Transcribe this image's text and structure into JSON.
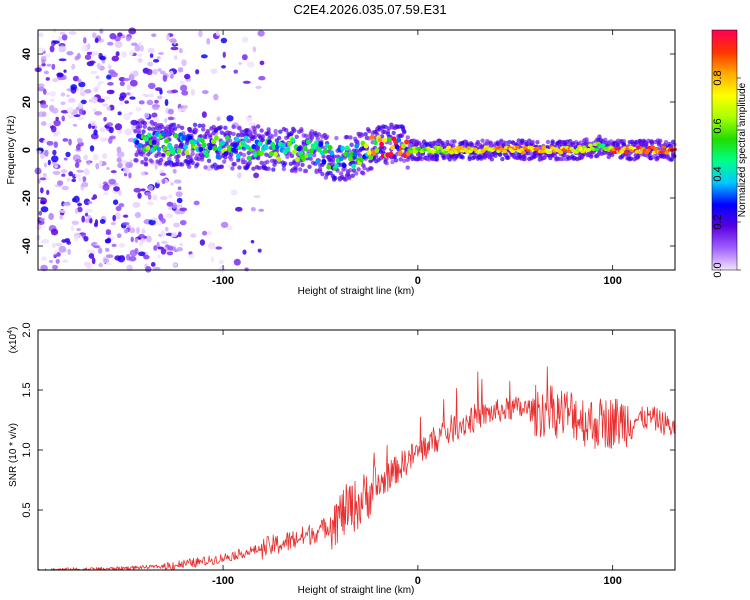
{
  "title": "C2E4.2026.035.07.59.E31",
  "chart_data": [
    {
      "type": "heatmap",
      "name": "spectrogram",
      "xlabel": "Height of straight line (km)",
      "ylabel": "Frequency (Hz)",
      "xlim": [
        -195,
        132
      ],
      "ylim": [
        -50,
        50
      ],
      "x_ticks": [
        -100,
        0,
        100
      ],
      "y_ticks": [
        -40,
        -20,
        0,
        20,
        40
      ],
      "colorbar": {
        "label": "Normalized spectral amplitude",
        "range": [
          0,
          1
        ],
        "ticks": [
          "0.0",
          "0.2",
          "0.4",
          "0.6",
          "0.8"
        ],
        "stops": [
          "#f2e4ff",
          "#a060ff",
          "#5a00e0",
          "#0000ff",
          "#00c8ff",
          "#00ff88",
          "#22dd00",
          "#aaff00",
          "#ffff00",
          "#ffaa00",
          "#ff3300",
          "#ff0055"
        ]
      },
      "signal_track": {
        "x": [
          -145,
          -120,
          -100,
          -80,
          -60,
          -50,
          -40,
          -30,
          -25,
          -20,
          -15,
          -10,
          -5,
          0,
          20,
          40,
          60,
          80,
          90,
          95,
          100,
          132
        ],
        "freq": [
          3,
          2,
          1,
          1,
          0,
          -2,
          -4,
          -2,
          1,
          2,
          2,
          2,
          0,
          0,
          0,
          0,
          0,
          0,
          1,
          2,
          0,
          0
        ],
        "peak_amplitude": [
          0.35,
          0.4,
          0.4,
          0.4,
          0.38,
          0.35,
          0.3,
          0.5,
          0.7,
          0.9,
          0.95,
          0.95,
          0.6,
          0.6,
          0.75,
          0.8,
          0.85,
          0.8,
          0.7,
          0.5,
          0.9,
          0.9
        ]
      },
      "noise_region": {
        "x_range": [
          -195,
          -120
        ],
        "freq_range": [
          -50,
          50
        ],
        "amplitude": 0.2
      }
    },
    {
      "type": "line",
      "name": "snr",
      "xlabel": "Height of straight line (km)",
      "ylabel": "SNR (10 * v/v)",
      "multiplier": "(x10",
      "multiplier_exp": "4",
      "multiplier_close": ")",
      "xlim": [
        -195,
        132
      ],
      "ylim": [
        0,
        2.0
      ],
      "x_ticks": [
        -100,
        0,
        100
      ],
      "y_ticks": [
        "0.5",
        "1.0",
        "1.5",
        "2.0"
      ],
      "color": "#e83030",
      "series": [
        {
          "name": "SNR",
          "x": [
            -195,
            -160,
            -130,
            -110,
            -100,
            -90,
            -80,
            -70,
            -60,
            -50,
            -45,
            -40,
            -35,
            -30,
            -25,
            -20,
            -15,
            -10,
            -5,
            0,
            10,
            20,
            30,
            40,
            50,
            60,
            70,
            80,
            85,
            90,
            100,
            110,
            120,
            132
          ],
          "y": [
            0.0,
            0.01,
            0.03,
            0.07,
            0.1,
            0.14,
            0.18,
            0.22,
            0.27,
            0.33,
            0.38,
            0.45,
            0.52,
            0.55,
            0.65,
            0.7,
            0.78,
            0.85,
            0.92,
            0.98,
            1.1,
            1.2,
            1.27,
            1.32,
            1.35,
            1.33,
            1.32,
            1.3,
            1.25,
            1.22,
            1.23,
            1.25,
            1.27,
            1.18
          ]
        }
      ]
    }
  ]
}
